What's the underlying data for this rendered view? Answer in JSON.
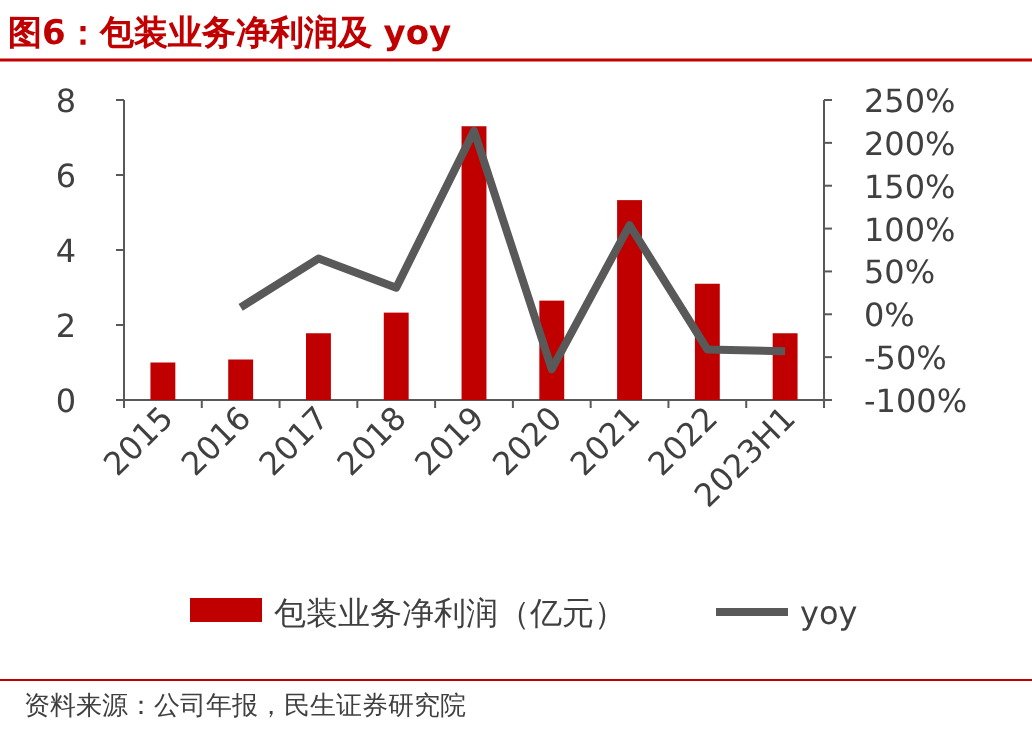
{
  "chart_data": {
    "type": "bar",
    "title": "图6：包装业务净利润及 yoy",
    "categories": [
      "2015",
      "2016",
      "2017",
      "2018",
      "2019",
      "2020",
      "2021",
      "2022",
      "2023H1"
    ],
    "series": [
      {
        "name": "包装业务净利润（亿元）",
        "color": "#c00000",
        "values": [
          1.0,
          1.08,
          1.78,
          2.33,
          7.3,
          2.65,
          5.33,
          3.1,
          1.78
        ]
      },
      {
        "name": "yoy",
        "type": "line",
        "axis": "y2",
        "color": "#595959",
        "values": [
          null,
          8,
          65,
          31,
          214,
          -64,
          104,
          -41,
          -43
        ]
      }
    ],
    "ylim": [
      0,
      8
    ],
    "yticks": [
      0,
      2,
      4,
      6,
      8
    ],
    "y2lim": [
      -100,
      250
    ],
    "y2ticks": [
      {
        "value": -100,
        "label": "-100%"
      },
      {
        "value": -50,
        "label": "-50%"
      },
      {
        "value": 0,
        "label": "0%"
      },
      {
        "value": 50,
        "label": "50%"
      },
      {
        "value": 100,
        "label": "100%"
      },
      {
        "value": 150,
        "label": "150%"
      },
      {
        "value": 200,
        "label": "200%"
      },
      {
        "value": 250,
        "label": "250%"
      }
    ],
    "legend": "bottom",
    "grid": false,
    "annotations": [
      "资料来源：公司年报，民生证券研究院"
    ]
  }
}
